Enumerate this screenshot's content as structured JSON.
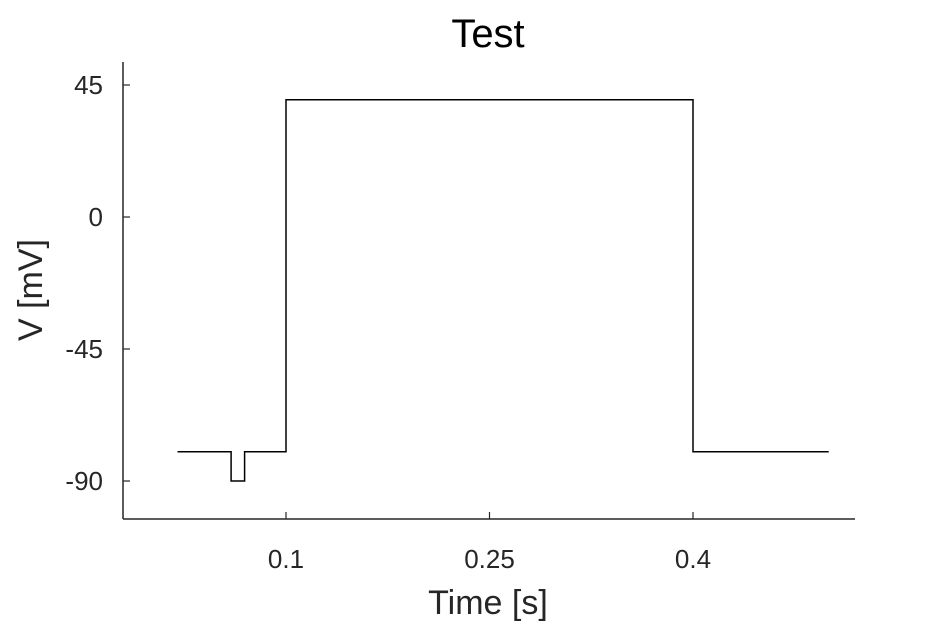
{
  "chart_data": {
    "type": "line",
    "title": "Test",
    "xlabel": "Time [s]",
    "ylabel": "V [mV]",
    "xlim": [
      -0.0,
      0.5
    ],
    "ylim": [
      -103,
      52
    ],
    "xticks": [
      0.1,
      0.25,
      0.4
    ],
    "xtick_labels": [
      "0.1",
      "0.25",
      "0.4"
    ],
    "yticks": [
      45,
      0,
      -45,
      -90
    ],
    "ytick_labels": [
      "45",
      "0",
      "-45",
      "-90"
    ],
    "grid": false,
    "legend": false,
    "colors": {
      "trace": "#000000",
      "axes": "#262626"
    },
    "series": [
      {
        "x": [
          0.02,
          0.0595,
          0.0595,
          0.0695,
          0.0695,
          0.1,
          0.1,
          0.4,
          0.4,
          0.5
        ],
        "y": [
          -80,
          -80,
          -90,
          -90,
          -80,
          -80,
          40,
          40,
          -80,
          -80
        ]
      }
    ]
  }
}
